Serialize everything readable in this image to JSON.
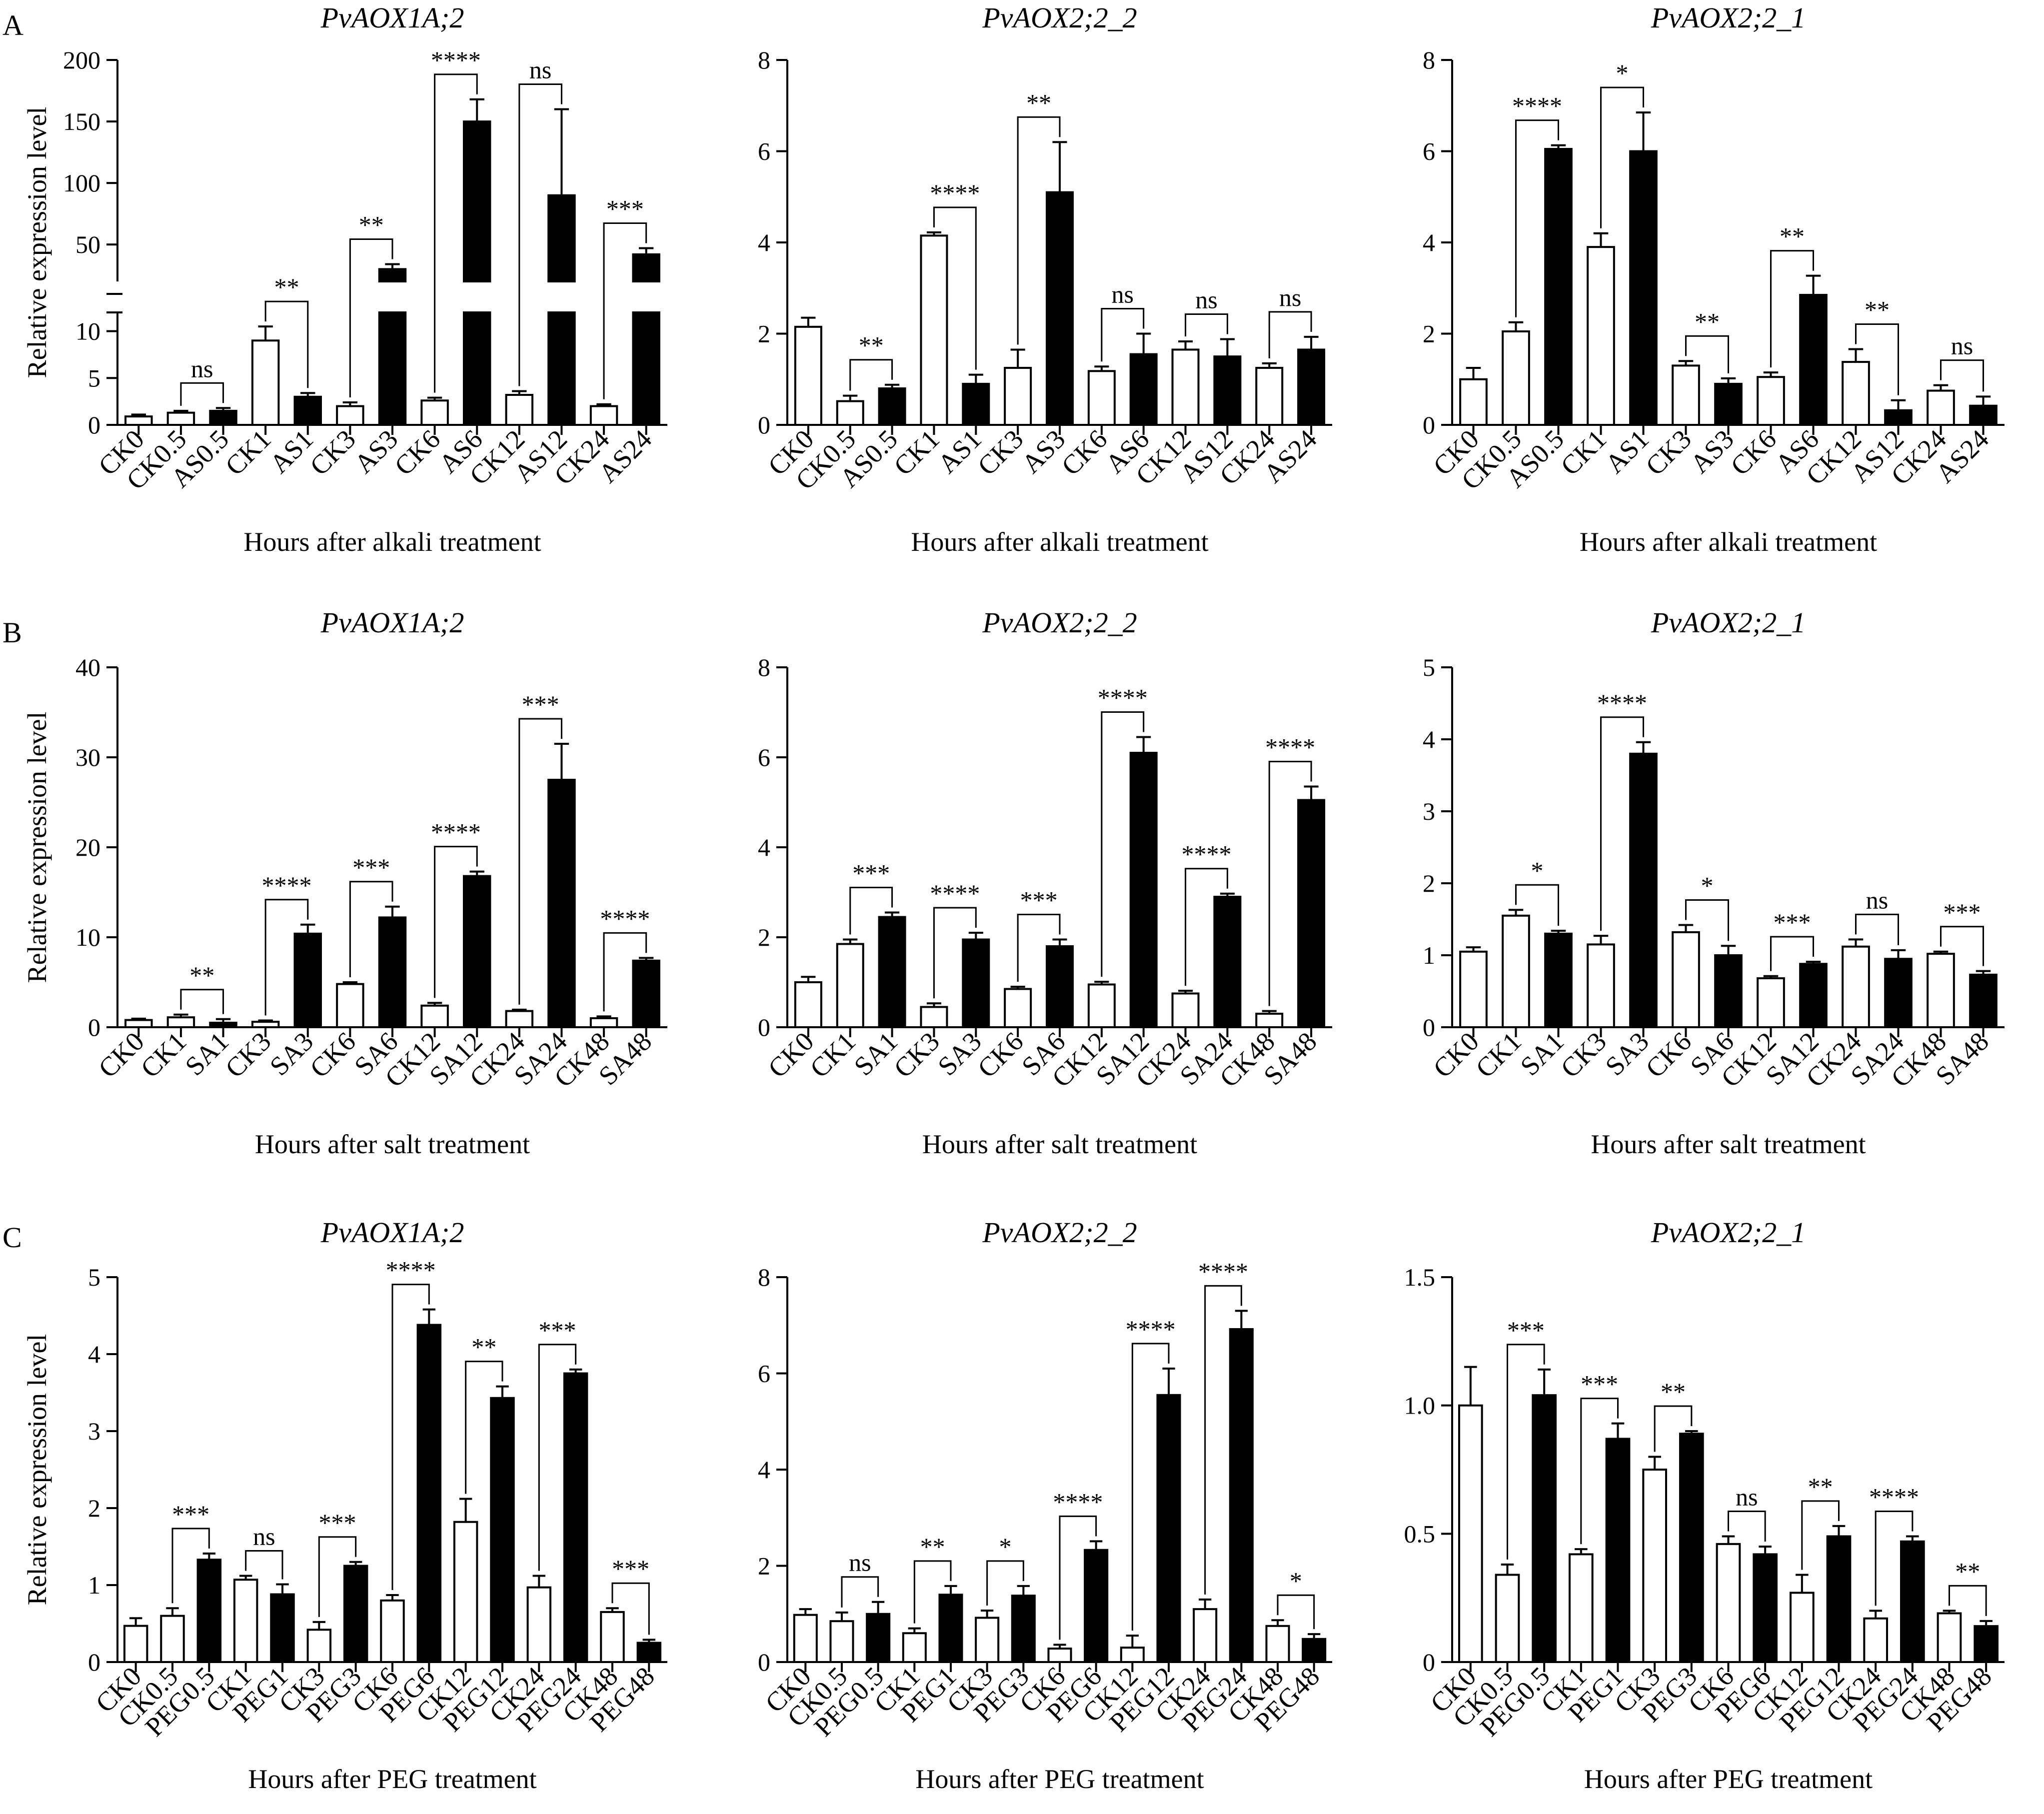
{
  "panel_letters": [
    "A",
    "B",
    "C"
  ],
  "chart_data": [
    {
      "type": "bar",
      "panel": "A",
      "title": "PvAOX1A;2",
      "xlabel": "Hours after alkali treatment",
      "ylabel": "Relative expression level",
      "categories": [
        "CK0",
        "CK0.5",
        "AS0.5",
        "CK1",
        "AS1",
        "CK3",
        "AS3",
        "CK6",
        "AS6",
        "CK12",
        "AS12",
        "CK24",
        "AS24"
      ],
      "values": [
        0.9,
        1.3,
        1.5,
        9.0,
        3.0,
        2.0,
        30,
        2.6,
        150,
        3.2,
        90,
        2.0,
        42
      ],
      "errors": [
        0.2,
        0.2,
        0.3,
        1.5,
        0.4,
        0.4,
        4,
        0.3,
        18,
        0.4,
        70,
        0.2,
        5
      ],
      "fill": [
        "white",
        "white",
        "black",
        "white",
        "black",
        "white",
        "black",
        "white",
        "black",
        "white",
        "black",
        "white",
        "black"
      ],
      "yticks_lower": [
        0,
        5,
        10
      ],
      "yticks_upper": [
        50,
        100,
        150,
        200
      ],
      "ylim_lower": [
        0,
        12
      ],
      "ylim_upper": [
        20,
        200
      ],
      "comparisons": [
        {
          "left": 1,
          "right": 2,
          "label": "ns"
        },
        {
          "left": 3,
          "right": 4,
          "label": "**"
        },
        {
          "left": 5,
          "right": 6,
          "label": "**"
        },
        {
          "left": 7,
          "right": 8,
          "label": "****"
        },
        {
          "left": 9,
          "right": 10,
          "label": "ns"
        },
        {
          "left": 11,
          "right": 12,
          "label": "***"
        }
      ]
    },
    {
      "type": "bar",
      "panel": "A",
      "title": "PvAOX2;2_2",
      "xlabel": "Hours after alkali treatment",
      "ylabel": "",
      "categories": [
        "CK0",
        "CK0.5",
        "AS0.5",
        "CK1",
        "AS1",
        "CK3",
        "AS3",
        "CK6",
        "AS6",
        "CK12",
        "AS12",
        "CK24",
        "AS24"
      ],
      "values": [
        2.15,
        0.52,
        0.8,
        4.15,
        0.9,
        1.25,
        5.1,
        1.18,
        1.55,
        1.65,
        1.5,
        1.25,
        1.65
      ],
      "errors": [
        0.2,
        0.12,
        0.08,
        0.07,
        0.2,
        0.4,
        1.1,
        0.1,
        0.45,
        0.18,
        0.38,
        0.1,
        0.28
      ],
      "fill": [
        "white",
        "white",
        "black",
        "white",
        "black",
        "white",
        "black",
        "white",
        "black",
        "white",
        "black",
        "white",
        "black"
      ],
      "ylim": [
        0,
        8
      ],
      "yticks": [
        0,
        2,
        4,
        6,
        8
      ],
      "comparisons": [
        {
          "left": 1,
          "right": 2,
          "label": "**"
        },
        {
          "left": 3,
          "right": 4,
          "label": "****"
        },
        {
          "left": 5,
          "right": 6,
          "label": "**"
        },
        {
          "left": 7,
          "right": 8,
          "label": "ns"
        },
        {
          "left": 9,
          "right": 10,
          "label": "ns"
        },
        {
          "left": 11,
          "right": 12,
          "label": "ns"
        }
      ]
    },
    {
      "type": "bar",
      "panel": "A",
      "title": "PvAOX2;2_1",
      "xlabel": "Hours after alkali treatment",
      "ylabel": "",
      "categories": [
        "CK0",
        "CK0.5",
        "AS0.5",
        "CK1",
        "AS1",
        "CK3",
        "AS3",
        "CK6",
        "AS6",
        "CK12",
        "AS12",
        "CK24",
        "AS24"
      ],
      "values": [
        1.0,
        2.05,
        6.05,
        3.9,
        6.0,
        1.3,
        0.9,
        1.05,
        2.85,
        1.38,
        0.32,
        0.75,
        0.42
      ],
      "errors": [
        0.25,
        0.2,
        0.08,
        0.3,
        0.85,
        0.1,
        0.12,
        0.1,
        0.42,
        0.28,
        0.22,
        0.12,
        0.2
      ],
      "fill": [
        "white",
        "white",
        "black",
        "white",
        "black",
        "white",
        "black",
        "white",
        "black",
        "white",
        "black",
        "white",
        "black"
      ],
      "ylim": [
        0,
        8
      ],
      "yticks": [
        0,
        2,
        4,
        6,
        8
      ],
      "comparisons": [
        {
          "left": 1,
          "right": 2,
          "label": "****"
        },
        {
          "left": 3,
          "right": 4,
          "label": "*"
        },
        {
          "left": 5,
          "right": 6,
          "label": "**"
        },
        {
          "left": 7,
          "right": 8,
          "label": "**"
        },
        {
          "left": 9,
          "right": 10,
          "label": "**"
        },
        {
          "left": 11,
          "right": 12,
          "label": "ns"
        }
      ]
    },
    {
      "type": "bar",
      "panel": "B",
      "title": "PvAOX1A;2",
      "xlabel": "Hours after salt treatment",
      "ylabel": "Relative expression level",
      "categories": [
        "CK0",
        "CK1",
        "SA1",
        "CK3",
        "SA3",
        "CK6",
        "SA6",
        "CK12",
        "SA12",
        "CK24",
        "SA24",
        "CK48",
        "SA48"
      ],
      "values": [
        0.8,
        1.1,
        0.5,
        0.6,
        10.4,
        4.8,
        12.2,
        2.4,
        16.8,
        1.8,
        27.5,
        1.0,
        7.4
      ],
      "errors": [
        0.15,
        0.3,
        0.4,
        0.15,
        1.0,
        0.2,
        1.2,
        0.3,
        0.5,
        0.15,
        4.0,
        0.2,
        0.3
      ],
      "fill": [
        "white",
        "white",
        "black",
        "white",
        "black",
        "white",
        "black",
        "white",
        "black",
        "white",
        "black",
        "white",
        "black"
      ],
      "ylim": [
        0,
        40
      ],
      "yticks": [
        0,
        10,
        20,
        30,
        40
      ],
      "comparisons": [
        {
          "left": 1,
          "right": 2,
          "label": "**"
        },
        {
          "left": 3,
          "right": 4,
          "label": "****"
        },
        {
          "left": 5,
          "right": 6,
          "label": "***"
        },
        {
          "left": 7,
          "right": 8,
          "label": "****"
        },
        {
          "left": 9,
          "right": 10,
          "label": "***"
        },
        {
          "left": 11,
          "right": 12,
          "label": "****"
        }
      ]
    },
    {
      "type": "bar",
      "panel": "B",
      "title": "PvAOX2;2_2",
      "xlabel": "Hours after salt treatment",
      "ylabel": "",
      "categories": [
        "CK0",
        "CK1",
        "SA1",
        "CK3",
        "SA3",
        "CK6",
        "SA6",
        "CK12",
        "SA12",
        "CK24",
        "SA24",
        "CK48",
        "SA48"
      ],
      "values": [
        1.0,
        1.85,
        2.45,
        0.45,
        1.95,
        0.85,
        1.8,
        0.95,
        6.1,
        0.75,
        2.9,
        0.3,
        5.05
      ],
      "errors": [
        0.12,
        0.1,
        0.1,
        0.08,
        0.15,
        0.05,
        0.15,
        0.06,
        0.35,
        0.06,
        0.07,
        0.06,
        0.3
      ],
      "fill": [
        "white",
        "white",
        "black",
        "white",
        "black",
        "white",
        "black",
        "white",
        "black",
        "white",
        "black",
        "white",
        "black"
      ],
      "ylim": [
        0,
        8
      ],
      "yticks": [
        0,
        2,
        4,
        6,
        8
      ],
      "comparisons": [
        {
          "left": 1,
          "right": 2,
          "label": "***"
        },
        {
          "left": 3,
          "right": 4,
          "label": "****"
        },
        {
          "left": 5,
          "right": 6,
          "label": "***"
        },
        {
          "left": 7,
          "right": 8,
          "label": "****"
        },
        {
          "left": 9,
          "right": 10,
          "label": "****"
        },
        {
          "left": 11,
          "right": 12,
          "label": "****"
        }
      ]
    },
    {
      "type": "bar",
      "panel": "B",
      "title": "PvAOX2;2_1",
      "xlabel": "Hours after salt treatment",
      "ylabel": "",
      "categories": [
        "CK0",
        "CK1",
        "SA1",
        "CK3",
        "SA3",
        "CK6",
        "SA6",
        "CK12",
        "SA12",
        "CK24",
        "SA24",
        "CK48",
        "SA48"
      ],
      "values": [
        1.05,
        1.55,
        1.3,
        1.15,
        3.8,
        1.32,
        1.0,
        0.68,
        0.88,
        1.12,
        0.95,
        1.02,
        0.73
      ],
      "errors": [
        0.06,
        0.08,
        0.04,
        0.12,
        0.16,
        0.1,
        0.13,
        0.03,
        0.03,
        0.1,
        0.12,
        0.03,
        0.05
      ],
      "fill": [
        "white",
        "white",
        "black",
        "white",
        "black",
        "white",
        "black",
        "white",
        "black",
        "white",
        "black",
        "white",
        "black"
      ],
      "ylim": [
        0,
        5
      ],
      "yticks": [
        0,
        1,
        2,
        3,
        4,
        5
      ],
      "comparisons": [
        {
          "left": 1,
          "right": 2,
          "label": "*"
        },
        {
          "left": 3,
          "right": 4,
          "label": "****"
        },
        {
          "left": 5,
          "right": 6,
          "label": "*"
        },
        {
          "left": 7,
          "right": 8,
          "label": "***"
        },
        {
          "left": 9,
          "right": 10,
          "label": "ns"
        },
        {
          "left": 11,
          "right": 12,
          "label": "***"
        }
      ]
    },
    {
      "type": "bar",
      "panel": "C",
      "title": "PvAOX1A;2",
      "xlabel": "Hours after PEG treatment",
      "ylabel": "Relative expression level",
      "categories": [
        "CK0",
        "CK0.5",
        "PEG0.5",
        "CK1",
        "PEG1",
        "CK3",
        "PEG3",
        "CK6",
        "PEG6",
        "CK12",
        "PEG12",
        "CK24",
        "PEG24",
        "CK48",
        "PEG48"
      ],
      "values": [
        0.47,
        0.6,
        1.33,
        1.07,
        0.88,
        0.42,
        1.25,
        0.8,
        4.38,
        1.82,
        3.43,
        0.97,
        3.75,
        0.65,
        0.25
      ],
      "errors": [
        0.1,
        0.1,
        0.08,
        0.05,
        0.13,
        0.1,
        0.05,
        0.07,
        0.2,
        0.3,
        0.15,
        0.15,
        0.05,
        0.05,
        0.04
      ],
      "fill": [
        "white",
        "white",
        "black",
        "white",
        "black",
        "white",
        "black",
        "white",
        "black",
        "white",
        "black",
        "white",
        "black",
        "white",
        "black"
      ],
      "ylim": [
        0,
        5
      ],
      "yticks": [
        0,
        1,
        2,
        3,
        4,
        5
      ],
      "comparisons": [
        {
          "left": 1,
          "right": 2,
          "label": "***"
        },
        {
          "left": 3,
          "right": 4,
          "label": "ns"
        },
        {
          "left": 5,
          "right": 6,
          "label": "***"
        },
        {
          "left": 7,
          "right": 8,
          "label": "****"
        },
        {
          "left": 9,
          "right": 10,
          "label": "**"
        },
        {
          "left": 11,
          "right": 12,
          "label": "***"
        },
        {
          "left": 13,
          "right": 14,
          "label": "***"
        }
      ]
    },
    {
      "type": "bar",
      "panel": "C",
      "title": "PvAOX2;2_2",
      "xlabel": "Hours after PEG treatment",
      "ylabel": "",
      "categories": [
        "CK0",
        "CK0.5",
        "PEG0.5",
        "CK1",
        "PEG1",
        "CK3",
        "PEG3",
        "CK6",
        "PEG6",
        "CK12",
        "PEG12",
        "CK24",
        "PEG24",
        "CK48",
        "PEG48"
      ],
      "values": [
        0.98,
        0.85,
        1.0,
        0.6,
        1.4,
        0.92,
        1.38,
        0.28,
        2.33,
        0.3,
        5.55,
        1.1,
        6.92,
        0.75,
        0.48
      ],
      "errors": [
        0.12,
        0.18,
        0.25,
        0.1,
        0.18,
        0.15,
        0.2,
        0.08,
        0.18,
        0.25,
        0.55,
        0.2,
        0.38,
        0.12,
        0.1
      ],
      "fill": [
        "white",
        "white",
        "black",
        "white",
        "black",
        "white",
        "black",
        "white",
        "black",
        "white",
        "black",
        "white",
        "black",
        "white",
        "black"
      ],
      "ylim": [
        0,
        8
      ],
      "yticks": [
        0,
        2,
        4,
        6,
        8
      ],
      "comparisons": [
        {
          "left": 1,
          "right": 2,
          "label": "ns"
        },
        {
          "left": 3,
          "right": 4,
          "label": "**"
        },
        {
          "left": 5,
          "right": 6,
          "label": "*"
        },
        {
          "left": 7,
          "right": 8,
          "label": "****"
        },
        {
          "left": 9,
          "right": 10,
          "label": "****"
        },
        {
          "left": 11,
          "right": 12,
          "label": "****"
        },
        {
          "left": 13,
          "right": 14,
          "label": "*"
        }
      ]
    },
    {
      "type": "bar",
      "panel": "C",
      "title": "PvAOX2;2_1",
      "xlabel": "Hours after PEG treatment",
      "ylabel": "",
      "categories": [
        "CK0",
        "CK0.5",
        "PEG0.5",
        "CK1",
        "PEG1",
        "CK3",
        "PEG3",
        "CK6",
        "PEG6",
        "CK12",
        "PEG12",
        "CK24",
        "PEG24",
        "CK48",
        "PEG48"
      ],
      "values": [
        1.0,
        0.34,
        1.04,
        0.42,
        0.87,
        0.75,
        0.89,
        0.46,
        0.42,
        0.27,
        0.49,
        0.17,
        0.47,
        0.19,
        0.14
      ],
      "errors": [
        0.15,
        0.04,
        0.1,
        0.02,
        0.06,
        0.05,
        0.01,
        0.03,
        0.03,
        0.07,
        0.04,
        0.03,
        0.02,
        0.01,
        0.02
      ],
      "fill": [
        "white",
        "white",
        "black",
        "white",
        "black",
        "white",
        "black",
        "white",
        "black",
        "white",
        "black",
        "white",
        "black",
        "white",
        "black"
      ],
      "ylim": [
        0,
        1.5
      ],
      "yticks": [
        0,
        0.5,
        1.0,
        1.5
      ],
      "ytick_labels": [
        "0",
        "0.5",
        "1.0",
        "1.5"
      ],
      "comparisons": [
        {
          "left": 1,
          "right": 2,
          "label": "***"
        },
        {
          "left": 3,
          "right": 4,
          "label": "***"
        },
        {
          "left": 5,
          "right": 6,
          "label": "**"
        },
        {
          "left": 7,
          "right": 8,
          "label": "ns"
        },
        {
          "left": 9,
          "right": 10,
          "label": "**"
        },
        {
          "left": 11,
          "right": 12,
          "label": "****"
        },
        {
          "left": 13,
          "right": 14,
          "label": "**"
        }
      ]
    }
  ]
}
